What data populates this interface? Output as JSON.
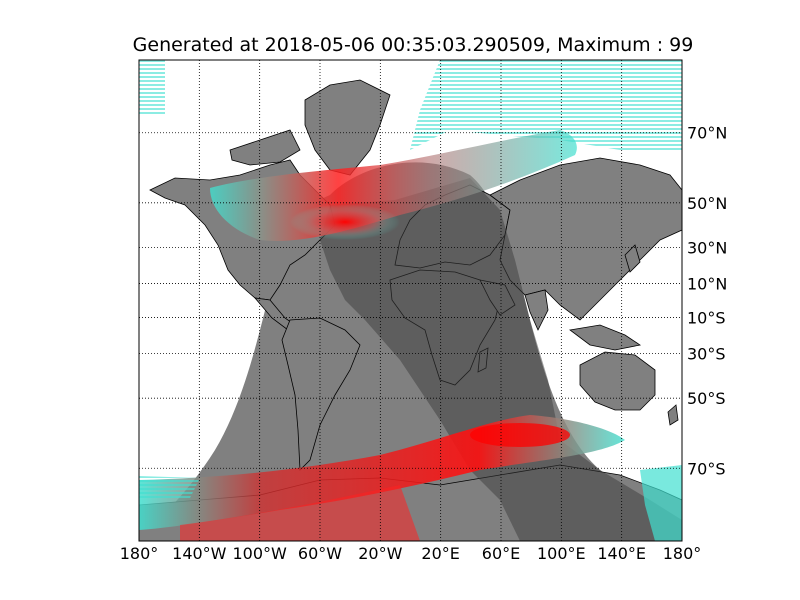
{
  "title": "Generated at 2018-05-06 00:35:03.290509, Maximum : 99",
  "projection": "mercator",
  "colors": {
    "ocean": "#ffffff",
    "land": "#808080",
    "night_land": "#3c3c3c",
    "night_shade": "#808080",
    "aurora_edge": "#40e0d0",
    "aurora_core": "#ff0000"
  },
  "lon_ticks": [
    {
      "value": -180,
      "label": "180°"
    },
    {
      "value": -140,
      "label": "140°W"
    },
    {
      "value": -100,
      "label": "100°W"
    },
    {
      "value": -60,
      "label": "60°W"
    },
    {
      "value": -20,
      "label": "20°W"
    },
    {
      "value": 20,
      "label": "20°E"
    },
    {
      "value": 60,
      "label": "60°E"
    },
    {
      "value": 100,
      "label": "100°E"
    },
    {
      "value": 140,
      "label": "140°E"
    },
    {
      "value": 180,
      "label": "180°"
    }
  ],
  "lat_ticks": [
    {
      "value": 70,
      "label": "70°N"
    },
    {
      "value": 50,
      "label": "50°N"
    },
    {
      "value": 30,
      "label": "30°N"
    },
    {
      "value": 10,
      "label": "10°N"
    },
    {
      "value": -10,
      "label": "10°S"
    },
    {
      "value": -30,
      "label": "30°S"
    },
    {
      "value": -50,
      "label": "50°S"
    },
    {
      "value": -70,
      "label": "70°S"
    }
  ],
  "grid": true
}
